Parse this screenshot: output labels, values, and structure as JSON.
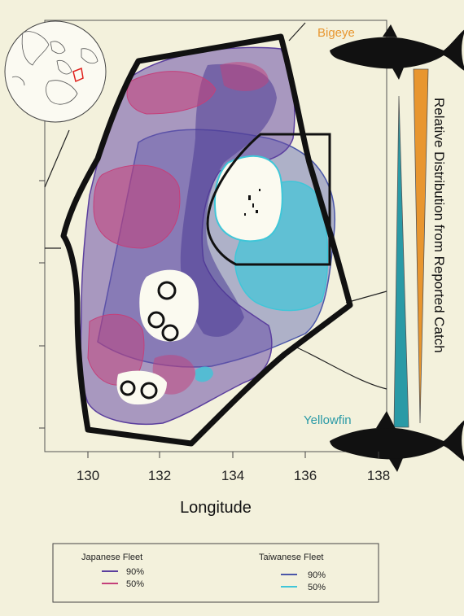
{
  "map": {
    "x_axis": {
      "title": "Longitude",
      "ticks": [
        "130",
        "132",
        "134",
        "136",
        "138"
      ]
    },
    "side_label": "Relative Distribution from Reported Catch",
    "species": {
      "top": "Bigeye",
      "bottom": "Yellowfin"
    },
    "colors": {
      "bigeye": "#e8962f",
      "yellowfin": "#2a9aa6",
      "japanese_90": "#5b3f9e",
      "japanese_50": "#c4407a",
      "taiwanese_90": "#4a56a8",
      "taiwanese_50": "#3fc6d8"
    },
    "legend": {
      "groups": [
        {
          "title": "Japanese Fleet",
          "items": [
            {
              "label": "90%",
              "color": "#5b3f9e"
            },
            {
              "label": "50%",
              "color": "#c4407a"
            }
          ]
        },
        {
          "title": "Taiwanese Fleet",
          "items": [
            {
              "label": "90%",
              "color": "#4a56a8"
            },
            {
              "label": "50%",
              "color": "#3fc6d8"
            }
          ]
        }
      ]
    }
  }
}
